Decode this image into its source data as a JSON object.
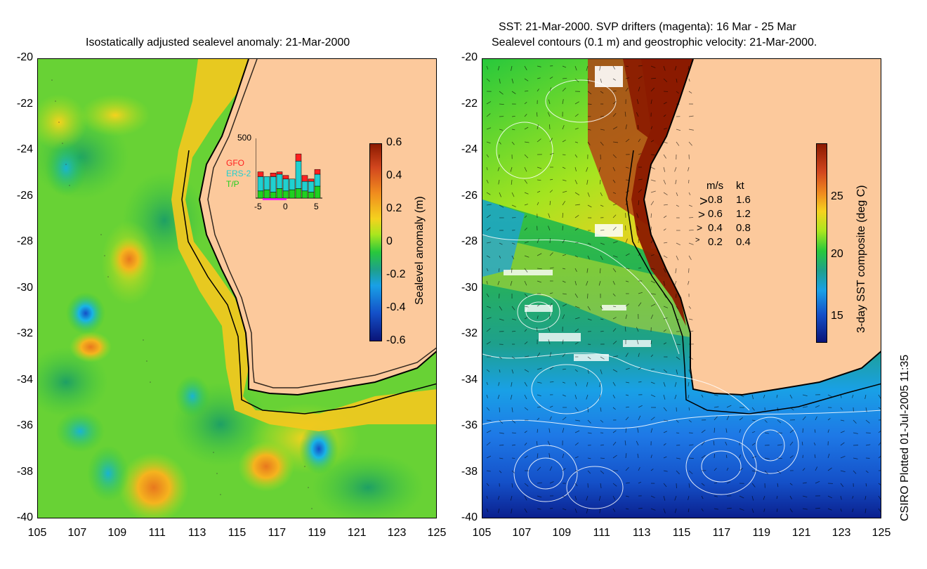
{
  "left_panel": {
    "title": "Isostatically adjusted sealevel anomaly: 21-Mar-2000",
    "colorbar": {
      "label": "Sealevel anomaly (m)",
      "ticks": [
        "0.6",
        "0.4",
        "0.2",
        "0",
        "-0.2",
        "-0.4",
        "-0.6"
      ],
      "colors": [
        "#8b1a00",
        "#d2461e",
        "#f08c1e",
        "#f5d21e",
        "#aae61e",
        "#28c83c",
        "#1ea08c",
        "#19a0e6",
        "#1450c8",
        "#0a1478"
      ]
    },
    "histogram": {
      "max_label": "500",
      "legend": [
        {
          "name": "GFO",
          "color": "#ff2020"
        },
        {
          "name": "ERS-2",
          "color": "#20d0d0"
        },
        {
          "name": "T/P",
          "color": "#20d020"
        }
      ],
      "x_ticks": [
        "-5",
        "0",
        "5"
      ],
      "bars": [
        {
          "day": -5,
          "tp": 60,
          "ers": 120,
          "gfo": 40
        },
        {
          "day": -4,
          "tp": 70,
          "ers": 110,
          "gfo": 0
        },
        {
          "day": -3,
          "tp": 50,
          "ers": 130,
          "gfo": 30
        },
        {
          "day": -2,
          "tp": 80,
          "ers": 120,
          "gfo": 20
        },
        {
          "day": -1,
          "tp": 60,
          "ers": 100,
          "gfo": 30
        },
        {
          "day": 0,
          "tp": 70,
          "ers": 90,
          "gfo": 0
        },
        {
          "day": 1,
          "tp": 80,
          "ers": 230,
          "gfo": 60
        },
        {
          "day": 2,
          "tp": 60,
          "ers": 80,
          "gfo": 50
        },
        {
          "day": 3,
          "tp": 50,
          "ers": 90,
          "gfo": 20
        },
        {
          "day": 4,
          "tp": 100,
          "ers": 100,
          "gfo": 40
        }
      ]
    }
  },
  "right_panel": {
    "title_line1": "SST: 21-Mar-2000. SVP drifters (magenta): 16 Mar - 25 Mar",
    "title_line2": "Sealevel contours (0.1 m) and geostrophic velocity: 21-Mar-2000.",
    "colorbar": {
      "label": "3-day SST composite (deg C)",
      "ticks": [
        "25",
        "20",
        "15"
      ],
      "colors": [
        "#8b1a00",
        "#d2461e",
        "#f08c1e",
        "#f5d21e",
        "#aae61e",
        "#28c83c",
        "#1ea08c",
        "#19a0e6",
        "#1450c8",
        "#0a1478"
      ]
    },
    "velocity_legend": {
      "header_ms": "m/s",
      "header_kt": "kt",
      "rows": [
        {
          "ms": "0.8",
          "kt": "1.6"
        },
        {
          "ms": "0.6",
          "kt": "1.2"
        },
        {
          "ms": "0.4",
          "kt": "0.8"
        },
        {
          "ms": "0.2",
          "kt": "0.4"
        }
      ]
    }
  },
  "axes": {
    "y_ticks": [
      "-20",
      "-22",
      "-24",
      "-26",
      "-28",
      "-30",
      "-32",
      "-34",
      "-36",
      "-38",
      "-40"
    ],
    "x_ticks": [
      "105",
      "107",
      "109",
      "111",
      "113",
      "115",
      "117",
      "119",
      "121",
      "123",
      "125"
    ],
    "lon_range": [
      105,
      125
    ],
    "lat_range": [
      -20,
      -40
    ]
  },
  "colors": {
    "land": "#fcc99c",
    "ocean_mid": "#3cc83c"
  },
  "credit": "CSIRO Plotted 01-Jul-2005 11:35"
}
